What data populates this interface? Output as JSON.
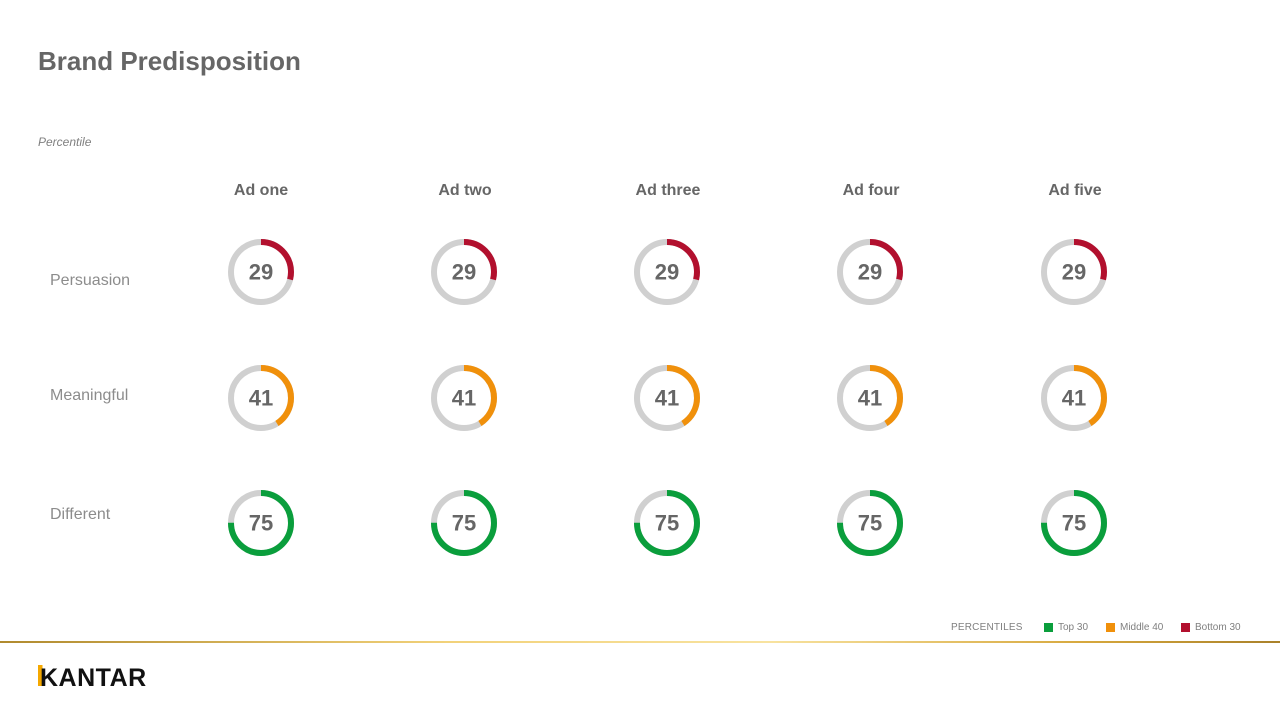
{
  "title": "Brand Predisposition",
  "subtitle": "Percentile",
  "chart_data": {
    "type": "donut-grid",
    "columns": [
      "Ad one",
      "Ad two",
      "Ad three",
      "Ad four",
      "Ad five"
    ],
    "rows": [
      {
        "label": "Persuasion",
        "values": [
          29,
          29,
          29,
          29,
          29
        ]
      },
      {
        "label": "Meaningful",
        "values": [
          41,
          41,
          41,
          41,
          41
        ]
      },
      {
        "label": "Different",
        "values": [
          75,
          75,
          75,
          75,
          75
        ]
      }
    ],
    "max": 100,
    "track_color": "#d0d0d0",
    "bands": [
      {
        "label": "Top 30",
        "min": 70,
        "color": "#0a9e3c"
      },
      {
        "label": "Middle 40",
        "min": 30,
        "color": "#f0900b"
      },
      {
        "label": "Bottom 30",
        "min": 0,
        "color": "#b2102e"
      }
    ]
  },
  "legend": {
    "title": "PERCENTILES",
    "items": [
      {
        "label": "Top 30",
        "color": "#0a9e3c"
      },
      {
        "label": "Middle 40",
        "color": "#f0900b"
      },
      {
        "label": "Bottom 30",
        "color": "#b2102e"
      }
    ]
  },
  "logo": {
    "text": "KANTAR",
    "accent_color": "#f5a800"
  }
}
